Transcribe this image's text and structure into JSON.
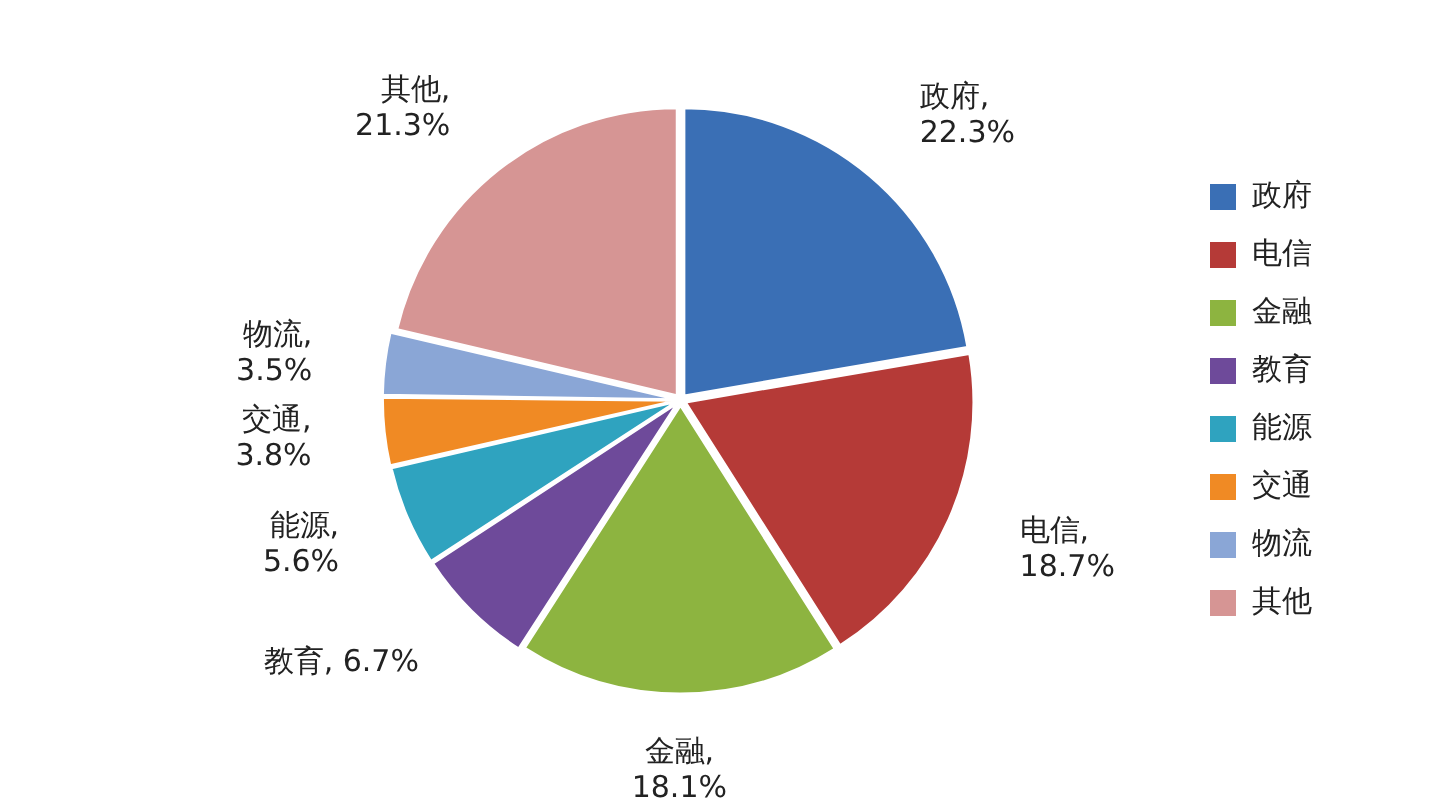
{
  "chart_data": {
    "type": "pie",
    "categories": [
      "政府",
      "电信",
      "金融",
      "教育",
      "能源",
      "交通",
      "物流",
      "其他"
    ],
    "values": [
      22.3,
      18.7,
      18.1,
      6.7,
      5.6,
      3.8,
      3.5,
      21.3
    ],
    "value_labels": [
      "政府,\n22.3%",
      "电信,\n18.7%",
      "金融,\n18.1%",
      "教育, 6.7%",
      "能源,\n5.6%",
      "交通,\n3.8%",
      "物流,\n3.5%",
      "其他,\n21.3%"
    ],
    "colors": [
      "#3a6fb5",
      "#b53a37",
      "#8db440",
      "#6e4a9a",
      "#2fa3bf",
      "#f08a24",
      "#8aa6d6",
      "#d69594"
    ],
    "legend": "right"
  }
}
